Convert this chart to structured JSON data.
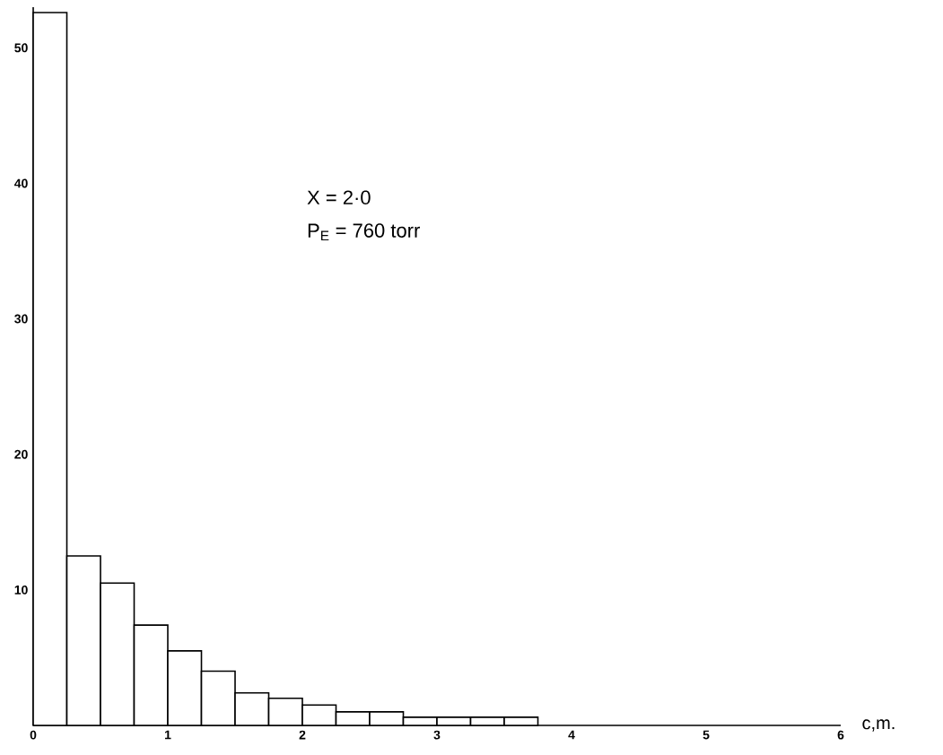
{
  "chart_data": {
    "type": "histogram",
    "bins": [
      0,
      0.25,
      0.5,
      0.75,
      1,
      1.25,
      1.5,
      1.75,
      2,
      2.25,
      2.5,
      2.75,
      3,
      3.25,
      3.5,
      3.75
    ],
    "values": [
      52.6,
      12.5,
      10.5,
      7.4,
      5.5,
      4.0,
      2.4,
      2.0,
      1.5,
      1.0,
      1.0,
      0.6,
      0.6,
      0.6,
      0.6
    ],
    "color": "#ffffff",
    "xlabel": "c,m.",
    "xlim": [
      0,
      6
    ],
    "xticks": [
      0,
      1,
      2,
      3,
      4,
      5,
      6
    ],
    "ylim": [
      0,
      53
    ],
    "yticks": [
      10,
      20,
      30,
      40,
      50
    ],
    "annotations": [
      "X = 2·0",
      "P$_{E}$ = 760 torr"
    ]
  }
}
